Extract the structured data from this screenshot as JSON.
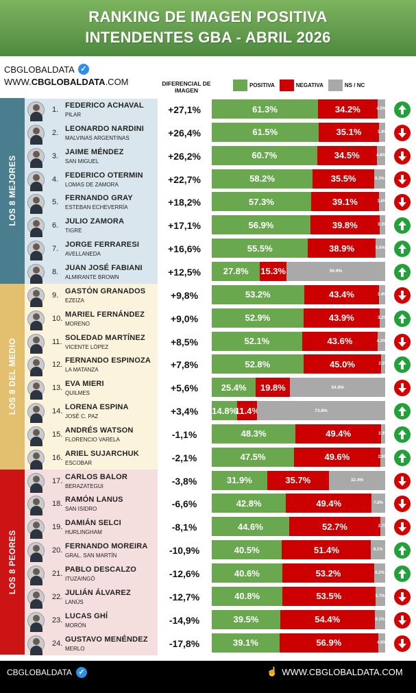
{
  "header": {
    "title_line1": "RANKING DE IMAGEN POSITIVA",
    "title_line2": "INTENDENTES GBA - ABRIL 2026"
  },
  "brand": {
    "name": "CBGLOBALDATA",
    "url_prefix": "WWW.",
    "url_domain": "CBGLOBALDATA",
    "url_suffix": ".COM"
  },
  "column_header": "DIFERENCIAL DE IMAGEN",
  "legend": [
    {
      "label": "POSITIVA",
      "color": "#6aa84f"
    },
    {
      "label": "NEGATIVA",
      "color": "#cc0000"
    },
    {
      "label": "NS / NC",
      "color": "#a9a9a9"
    }
  ],
  "groups": [
    {
      "label": "LOS 8 MEJORES",
      "color": "#4a7e8f",
      "rowbg": "#dae6ed"
    },
    {
      "label": "LOS 8 DEL MEDIO",
      "color": "#e2c070",
      "rowbg": "#fbf3db"
    },
    {
      "label": "LOS 8 PEORES",
      "color": "#cc1414",
      "rowbg": "#f4dede"
    }
  ],
  "chart_data": {
    "type": "bar",
    "title": "RANKING DE IMAGEN POSITIVA INTENDENTES GBA - ABRIL 2026",
    "stacked": true,
    "series_names": [
      "POSITIVA",
      "NEGATIVA",
      "NS / NC"
    ],
    "rows": [
      {
        "rank": "1.",
        "name": "FEDERICO ACHAVAL",
        "place": "PILAR",
        "diff": "+27,1%",
        "pos": 61.3,
        "neg": 34.2,
        "ns": 4.5,
        "trend": "up"
      },
      {
        "rank": "2.",
        "name": "LEONARDO NARDINI",
        "place": "MALVINAS ARGENTINAS",
        "diff": "+26,4%",
        "pos": 61.5,
        "neg": 35.1,
        "ns": 3.4,
        "trend": "down"
      },
      {
        "rank": "3.",
        "name": "JAIME MÉNDEZ",
        "place": "SAN MIGUEL",
        "diff": "+26,2%",
        "pos": 60.7,
        "neg": 34.5,
        "ns": 4.8,
        "trend": "down"
      },
      {
        "rank": "4.",
        "name": "FEDERICO OTERMIN",
        "place": "LOMAS DE ZAMORA",
        "diff": "+22,7%",
        "pos": 58.2,
        "neg": 35.5,
        "ns": 6.3,
        "trend": "down"
      },
      {
        "rank": "5.",
        "name": "FERNANDO GRAY",
        "place": "ESTEBAN ECHEVERRÍA",
        "diff": "+18,2%",
        "pos": 57.3,
        "neg": 39.1,
        "ns": 3.6,
        "trend": "down"
      },
      {
        "rank": "6.",
        "name": "JULIO ZAMORA",
        "place": "TIGRE",
        "diff": "+17,1%",
        "pos": 56.9,
        "neg": 39.8,
        "ns": 3.3,
        "trend": "up"
      },
      {
        "rank": "7.",
        "name": "JORGE FERRARESI",
        "place": "AVELLANEDA",
        "diff": "+16,6%",
        "pos": 55.5,
        "neg": 38.9,
        "ns": 5.6,
        "trend": "up"
      },
      {
        "rank": "8.",
        "name": "JUAN JOSÉ FABIANI",
        "place": "ALMIRANTE BROWN",
        "diff": "+12,5%",
        "pos": 27.8,
        "neg": 15.3,
        "ns": 56.9,
        "trend": "up"
      },
      {
        "rank": "9.",
        "name": "GASTÓN GRANADOS",
        "place": "EZEIZA",
        "diff": "+9,8%",
        "pos": 53.2,
        "neg": 43.4,
        "ns": 3.4,
        "trend": "down"
      },
      {
        "rank": "10.",
        "name": "MARIEL FERNÁNDEZ",
        "place": "MORENO",
        "diff": "+9,0%",
        "pos": 52.9,
        "neg": 43.9,
        "ns": 3.2,
        "trend": "up"
      },
      {
        "rank": "11.",
        "name": "SOLEDAD MARTÍNEZ",
        "place": "VICENTE LÓPEZ",
        "diff": "+8,5%",
        "pos": 52.1,
        "neg": 43.6,
        "ns": 4.3,
        "trend": "down"
      },
      {
        "rank": "12.",
        "name": "FERNANDO ESPINOZA",
        "place": "LA MATANZA",
        "diff": "+7,8%",
        "pos": 52.8,
        "neg": 45.0,
        "ns": 2.2,
        "trend": "up"
      },
      {
        "rank": "13.",
        "name": "EVA MIERI",
        "place": "QUILMES",
        "diff": "+5,6%",
        "pos": 25.4,
        "neg": 19.8,
        "ns": 54.8,
        "trend": "down"
      },
      {
        "rank": "14.",
        "name": "LORENA ESPINA",
        "place": "JOSÉ C. PAZ",
        "diff": "+3,4%",
        "pos": 14.8,
        "neg": 11.4,
        "ns": 73.8,
        "trend": "up"
      },
      {
        "rank": "15.",
        "name": "ANDRÉS WATSON",
        "place": "FLORENCIO VARELA",
        "diff": "-1,1%",
        "pos": 48.3,
        "neg": 49.4,
        "ns": 2.3,
        "trend": "up"
      },
      {
        "rank": "16.",
        "name": "ARIEL SUJARCHUK",
        "place": "ESCOBAR",
        "diff": "-2,1%",
        "pos": 47.5,
        "neg": 49.6,
        "ns": 2.9,
        "trend": "up"
      },
      {
        "rank": "17.",
        "name": "CARLOS BALOR",
        "place": "BERAZATEGUI",
        "diff": "-3,8%",
        "pos": 31.9,
        "neg": 35.7,
        "ns": 32.4,
        "trend": "down"
      },
      {
        "rank": "18.",
        "name": "RAMÓN LANUS",
        "place": "SAN ISIDRO",
        "diff": "-6,6%",
        "pos": 42.8,
        "neg": 49.4,
        "ns": 7.8,
        "trend": "down"
      },
      {
        "rank": "19.",
        "name": "DAMIÁN SELCI",
        "place": "HURLINGHAM",
        "diff": "-8,1%",
        "pos": 44.6,
        "neg": 52.7,
        "ns": 2.7,
        "trend": "down"
      },
      {
        "rank": "20.",
        "name": "FERNANDO MOREIRA",
        "place": "GRAL. SAN MARTÍN",
        "diff": "-10,9%",
        "pos": 40.5,
        "neg": 51.4,
        "ns": 8.1,
        "trend": "up"
      },
      {
        "rank": "21.",
        "name": "PABLO DESCALZO",
        "place": "ITUZAINGÓ",
        "diff": "-12,6%",
        "pos": 40.6,
        "neg": 53.2,
        "ns": 6.2,
        "trend": "up"
      },
      {
        "rank": "22.",
        "name": "JULIÁN ÁLVAREZ",
        "place": "LANÚS",
        "diff": "-12,7%",
        "pos": 40.8,
        "neg": 53.5,
        "ns": 5.7,
        "trend": "down"
      },
      {
        "rank": "23.",
        "name": "LUCAS GHÍ",
        "place": "MORÓN",
        "diff": "-14,9%",
        "pos": 39.5,
        "neg": 54.4,
        "ns": 6.1,
        "trend": "down"
      },
      {
        "rank": "24.",
        "name": "GUSTAVO MENÉNDEZ",
        "place": "MERLO",
        "diff": "-17,8%",
        "pos": 39.1,
        "neg": 56.9,
        "ns": 4.0,
        "trend": "down"
      }
    ]
  },
  "footer": {
    "left": "CBGLOBALDATA",
    "right": "WWW.CBGLOBALDATA.COM"
  }
}
